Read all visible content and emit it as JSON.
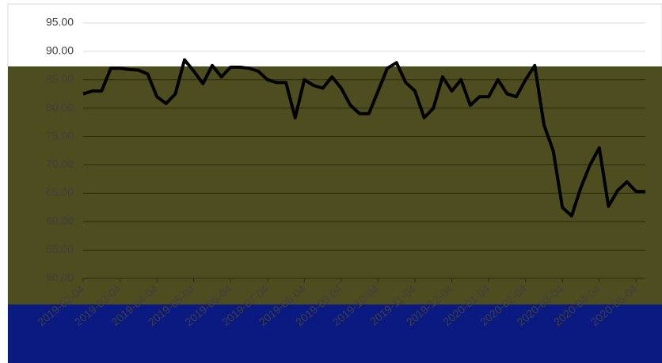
{
  "chart_data": {
    "type": "line",
    "categories": [
      "2019-02-04",
      null,
      null,
      null,
      "2019-03-04",
      null,
      null,
      null,
      "2019-04-04",
      null,
      null,
      null,
      "2019-05-04",
      null,
      null,
      null,
      "2019-06-04",
      null,
      null,
      null,
      "2019-07-04",
      null,
      null,
      null,
      "2019-08-04",
      null,
      null,
      null,
      "2019-09-04",
      null,
      null,
      null,
      "2019-10-04",
      null,
      null,
      null,
      "2019-11-04",
      null,
      null,
      null,
      "2019-12-04",
      null,
      null,
      null,
      "2020-01-04",
      null,
      null,
      null,
      "2020-02-04",
      null,
      null,
      null,
      "2020-03-04",
      null,
      null,
      null,
      "2020-04-04",
      null,
      null,
      null,
      "2020-05-04",
      null
    ],
    "series": [
      {
        "color": "#000000",
        "values": [
          82.5,
          83,
          83,
          87,
          87,
          86.8,
          86.7,
          86,
          82,
          80.8,
          82.5,
          88.5,
          86.5,
          84.3,
          87.5,
          85.5,
          87.2,
          87.2,
          87,
          86.5,
          85,
          84.5,
          84.5,
          78.3,
          85,
          84,
          83.5,
          85.5,
          83.5,
          80.5,
          79,
          79,
          83,
          87,
          88,
          84.5,
          83,
          78.3,
          80,
          85.5,
          83,
          85,
          80.5,
          82,
          82,
          85,
          82.5,
          82,
          85,
          87.5,
          77,
          72.5,
          62.5,
          61,
          66,
          70,
          73,
          62.7,
          65.5,
          67,
          65.3,
          65.3
        ]
      }
    ],
    "ylim": [
      50,
      95
    ],
    "yticks": [
      {
        "value": 50,
        "label": "50.00"
      },
      {
        "value": 55,
        "label": "55.00"
      },
      {
        "value": 60,
        "label": "60.00"
      },
      {
        "value": 65,
        "label": "65.00"
      },
      {
        "value": 70,
        "label": "70.00"
      },
      {
        "value": 75,
        "label": "75.00"
      },
      {
        "value": 80,
        "label": "80.00"
      },
      {
        "value": 85,
        "label": "85.00"
      },
      {
        "value": 90,
        "label": "90.00"
      },
      {
        "value": 95,
        "label": "95.00"
      }
    ],
    "grid": true
  }
}
